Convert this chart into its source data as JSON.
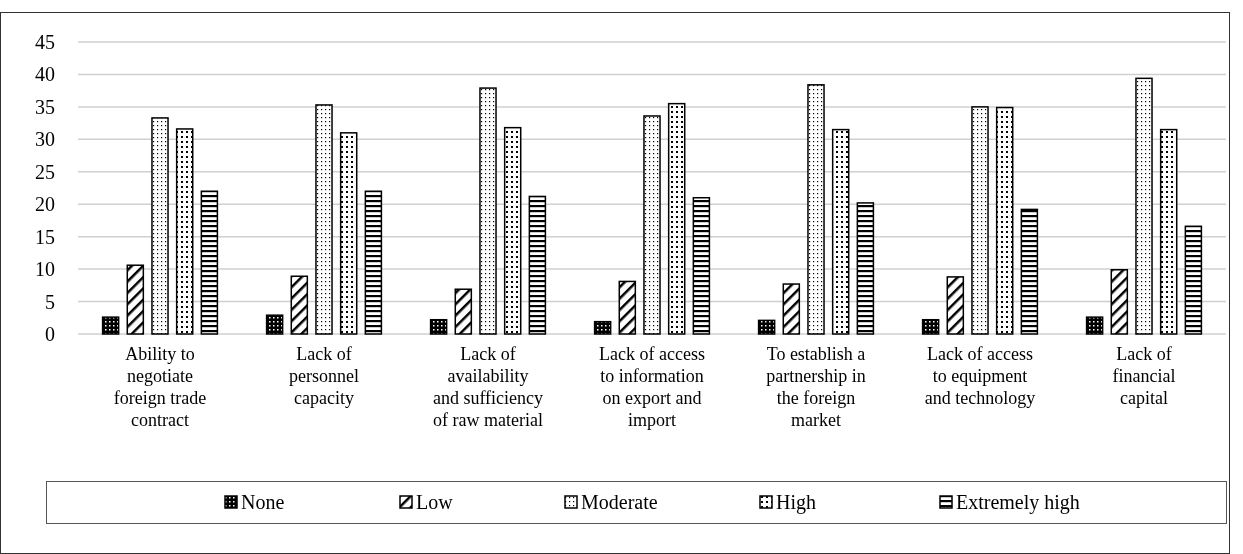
{
  "chart_data": {
    "type": "bar",
    "categories": [
      "Ability to negotiate foreign trade contract",
      "Lack of personnel capacity",
      "Lack of availability and sufficiency of raw material",
      "Lack of access to information on export and import",
      "To establish a partnership in the foreign market",
      "Lack of access to equipment and technology",
      "Lack of financial capital"
    ],
    "series": [
      {
        "name": "None",
        "color": "#000000",
        "values": [
          2.6,
          2.9,
          2.2,
          1.9,
          2.1,
          2.2,
          2.6
        ]
      },
      {
        "name": "Low",
        "color": "#000000",
        "values": [
          10.6,
          8.9,
          6.9,
          8.1,
          7.7,
          8.8,
          9.9
        ]
      },
      {
        "name": "Moderate",
        "color": "#000000",
        "values": [
          33.3,
          35.3,
          37.9,
          33.6,
          38.4,
          35,
          39.4
        ]
      },
      {
        "name": "High",
        "color": "#000000",
        "values": [
          31.6,
          31,
          31.8,
          35.5,
          31.5,
          34.9,
          31.5
        ]
      },
      {
        "name": "Extremely high",
        "color": "#000000",
        "values": [
          22,
          22,
          21.2,
          21,
          20.2,
          19.2,
          16.6
        ]
      }
    ],
    "ylim": [
      0,
      45
    ],
    "yticks": [
      0,
      5,
      10,
      15,
      20,
      25,
      30,
      35,
      40,
      45
    ],
    "grid": "y",
    "legend": "bottom"
  }
}
